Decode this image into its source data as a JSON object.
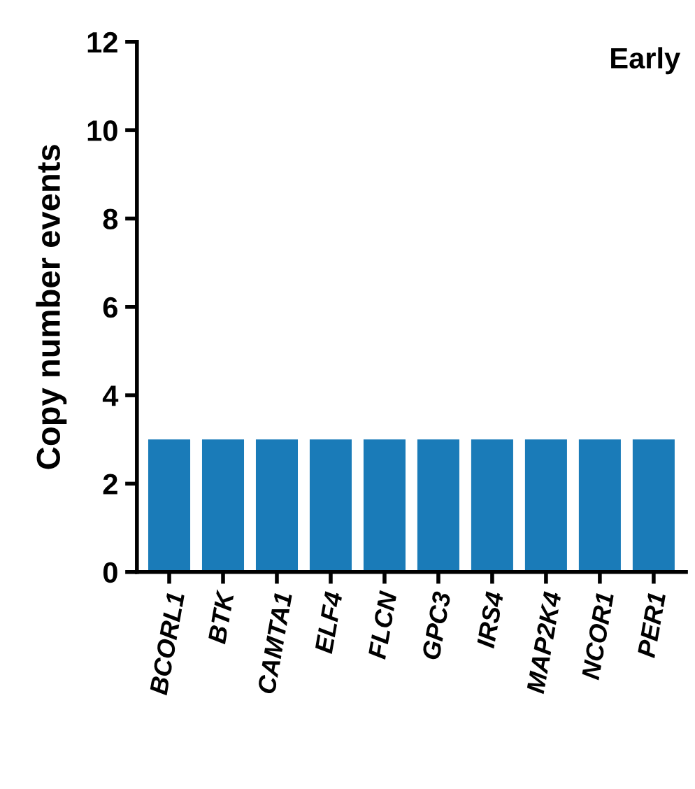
{
  "chart_data": {
    "type": "bar",
    "title": "Early",
    "ylabel": "Copy number events",
    "categories": [
      "BCORL1",
      "BTK",
      "CAMTA1",
      "ELF4",
      "FLCN",
      "GPC3",
      "IRS4",
      "MAP2K4",
      "NCOR1",
      "PER1"
    ],
    "values": [
      3,
      3,
      3,
      3,
      3,
      3,
      3,
      3,
      3,
      3
    ],
    "color": "#1a7bb8",
    "ylim": [
      0,
      12
    ],
    "yticks": [
      0,
      2,
      4,
      6,
      8,
      10,
      12
    ],
    "grid": false,
    "legend": false
  }
}
